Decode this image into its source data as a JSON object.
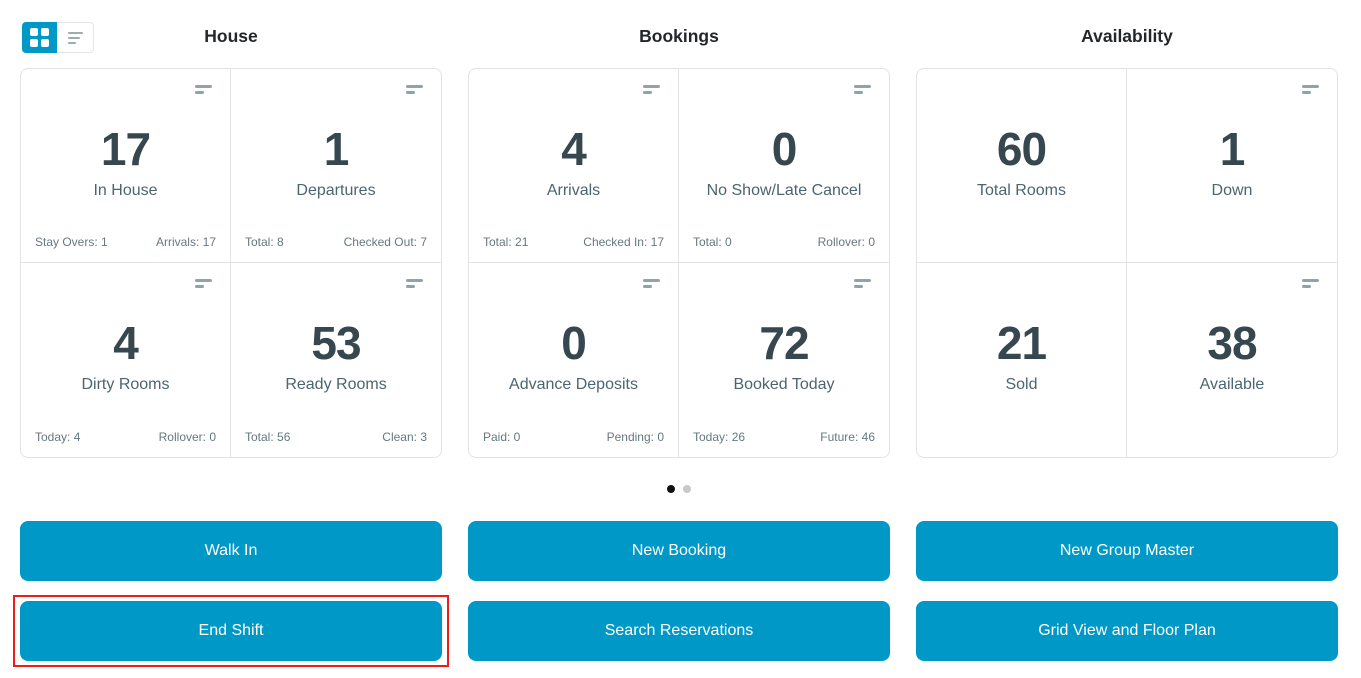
{
  "view_toggle": {
    "active_view": "grid",
    "buttons": [
      {
        "id": "grid-view",
        "icon": "grid-icon",
        "active": true
      },
      {
        "id": "list-view",
        "icon": "list-lines-icon",
        "active": false
      }
    ]
  },
  "sections": [
    {
      "title": "House",
      "cards": [
        {
          "value": "17",
          "label": "In House",
          "foot_left": "Stay Overs: 1",
          "foot_right": "Arrivals: 17"
        },
        {
          "value": "1",
          "label": "Departures",
          "foot_left": "Total: 8",
          "foot_right": "Checked Out: 7"
        },
        {
          "value": "4",
          "label": "Dirty Rooms",
          "foot_left": "Today: 4",
          "foot_right": "Rollover: 0"
        },
        {
          "value": "53",
          "label": "Ready Rooms",
          "foot_left": "Total: 56",
          "foot_right": "Clean: 3"
        }
      ]
    },
    {
      "title": "Bookings",
      "cards": [
        {
          "value": "4",
          "label": "Arrivals",
          "foot_left": "Total: 21",
          "foot_right": "Checked In: 17"
        },
        {
          "value": "0",
          "label": "No Show/Late Cancel",
          "foot_left": "Total: 0",
          "foot_right": "Rollover: 0"
        },
        {
          "value": "0",
          "label": "Advance Deposits",
          "foot_left": "Paid: 0",
          "foot_right": "Pending: 0"
        },
        {
          "value": "72",
          "label": "Booked Today",
          "foot_left": "Today: 26",
          "foot_right": "Future: 46"
        }
      ]
    },
    {
      "title": "Availability",
      "cards": [
        {
          "value": "60",
          "label": "Total Rooms"
        },
        {
          "value": "1",
          "label": "Down"
        },
        {
          "value": "21",
          "label": "Sold"
        },
        {
          "value": "38",
          "label": "Available"
        }
      ]
    }
  ],
  "pagination": {
    "total_pages": 2,
    "active_page": 1
  },
  "buttons": {
    "walk_in": "Walk In",
    "new_booking": "New Booking",
    "new_group_master": "New Group Master",
    "end_shift": "End Shift",
    "search_reservations": "Search Reservations",
    "grid_view_floor_plan": "Grid View and Floor Plan"
  },
  "highlight": {
    "target": "End Shift"
  },
  "colors": {
    "accent": "#0099c7",
    "card_value": "#36474f",
    "card_label": "#4b6572",
    "card_footer": "#65797f",
    "card_border": "#e1e3e4",
    "icon_gray": "#90a2ac",
    "highlight_red": "#ee1c1c",
    "dot_active": "#111111",
    "dot_inactive": "#c9c9c9"
  }
}
